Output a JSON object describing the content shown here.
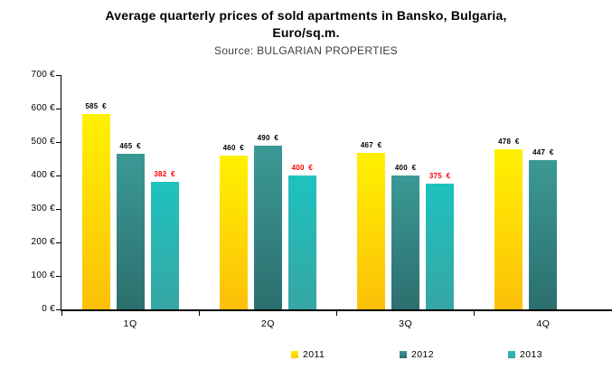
{
  "header": {
    "title_lines": [
      "Average quarterly prices of sold apartments in Bansko, Bulgaria,",
      "Euro/sq.m."
    ]
  },
  "chart_data": {
    "type": "bar",
    "title": "Average quarterly prices of sold apartments in Bansko, Bulgaria, Euro/sq.m.",
    "subtitle": "Source: BULGARIAN PROPERTIES",
    "categories": [
      "1Q",
      "2Q",
      "3Q",
      "4Q"
    ],
    "series": [
      {
        "name": "2011",
        "values": [
          585,
          460,
          467,
          478
        ],
        "label_color": "#000000",
        "gradient": [
          "#FFF100",
          "#FCC008"
        ]
      },
      {
        "name": "2012",
        "values": [
          465,
          490,
          400,
          447
        ],
        "label_color": "#000000",
        "gradient": [
          "#3B9995",
          "#2C6F6E"
        ]
      },
      {
        "name": "2013",
        "values": [
          382,
          400,
          375,
          null
        ],
        "label_color": "#FF0000",
        "gradient": [
          "#1EC2BF",
          "#36A6A4"
        ]
      }
    ],
    "ylim": [
      0,
      700
    ],
    "ytick_step": 100,
    "ytick_suffix": " €",
    "value_suffix": "  €",
    "legend_position": "bottom",
    "grid": false,
    "axis_color": "#000000"
  }
}
